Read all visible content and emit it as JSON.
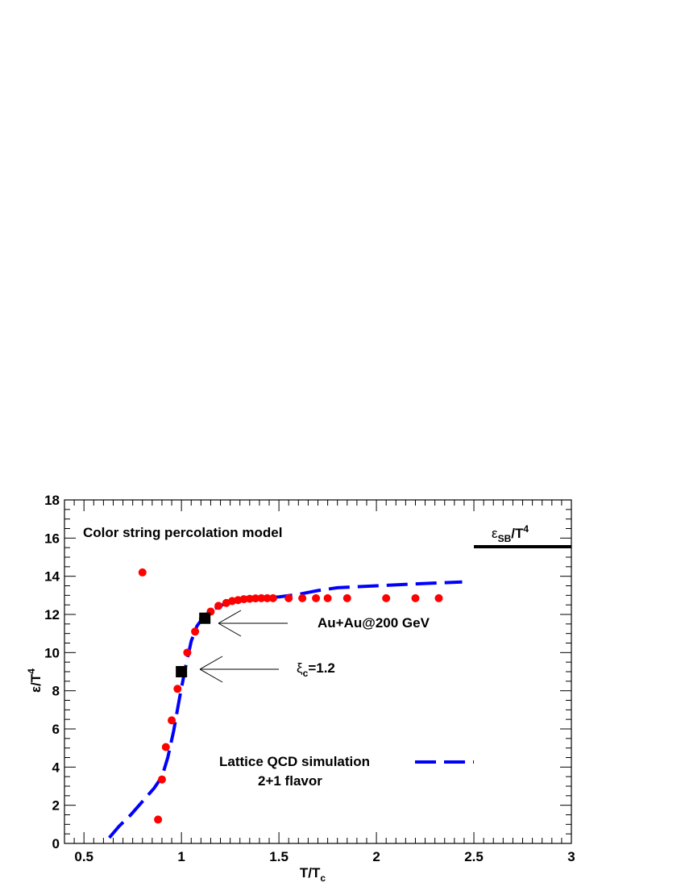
{
  "chart_data": {
    "type": "scatter",
    "xlabel": "T/T",
    "xlabel_sub": "c",
    "ylabel": "ε/T",
    "ylabel_sup": "4",
    "xlim": [
      0.4,
      3.0
    ],
    "ylim": [
      0,
      18
    ],
    "x_ticks": [
      "0.5",
      "1",
      "1.5",
      "2",
      "2.5",
      "3"
    ],
    "y_ticks": [
      "0",
      "2",
      "4",
      "6",
      "8",
      "10",
      "12",
      "14",
      "16",
      "18"
    ],
    "grid": false,
    "colors": {
      "points": "#ff0000",
      "lattice": "#0000ff",
      "markers": "#000000",
      "sb_line": "#000000"
    },
    "series": [
      {
        "name": "Color string percolation model",
        "kind": "points",
        "color": "#ff0000",
        "x": [
          0.8,
          0.88,
          0.9,
          0.92,
          0.95,
          0.98,
          1.03,
          1.07,
          1.11,
          1.15,
          1.19,
          1.23,
          1.26,
          1.29,
          1.32,
          1.35,
          1.38,
          1.41,
          1.44,
          1.47,
          1.55,
          1.62,
          1.69,
          1.75,
          1.85,
          2.05,
          2.2,
          2.32
        ],
        "y": [
          14.2,
          1.25,
          3.35,
          5.05,
          6.45,
          8.1,
          10.0,
          11.1,
          11.75,
          12.15,
          12.45,
          12.6,
          12.7,
          12.75,
          12.8,
          12.82,
          12.84,
          12.85,
          12.85,
          12.85,
          12.85,
          12.85,
          12.85,
          12.85,
          12.85,
          12.85,
          12.85,
          12.85
        ]
      },
      {
        "name": "Lattice QCD simulation",
        "kind": "dashed-line",
        "color": "#0000ff",
        "x": [
          0.63,
          0.68,
          0.74,
          0.8,
          0.86,
          0.9,
          0.93,
          0.96,
          0.99,
          1.02,
          1.05,
          1.08,
          1.12,
          1.17,
          1.22,
          1.3,
          1.4,
          1.5,
          1.6,
          1.7,
          1.8,
          2.0,
          2.2,
          2.44
        ],
        "y": [
          0.3,
          0.9,
          1.5,
          2.2,
          2.9,
          3.5,
          4.5,
          5.9,
          7.6,
          9.2,
          10.6,
          11.4,
          11.95,
          12.3,
          12.55,
          12.75,
          12.85,
          12.92,
          13.05,
          13.25,
          13.4,
          13.5,
          13.6,
          13.7
        ]
      },
      {
        "name": "markers",
        "kind": "squares",
        "color": "#000000",
        "x": [
          1.0,
          1.12
        ],
        "y": [
          9.0,
          11.8
        ]
      }
    ],
    "reference_line": {
      "y": 15.55,
      "x_from": 2.5,
      "x_to": 3.0,
      "label": "ε",
      "label_sub": "SB",
      "label_tail": "/T",
      "label_sup": "4"
    },
    "annotations": {
      "title": "Color string percolation model",
      "au": "Au+Au@200 GeV",
      "xi_symbol": "ξ",
      "xi_sub": "c",
      "xi_value": "=1.2",
      "lattice_line1": "Lattice QCD simulation",
      "lattice_line2": "2+1 flavor"
    }
  }
}
